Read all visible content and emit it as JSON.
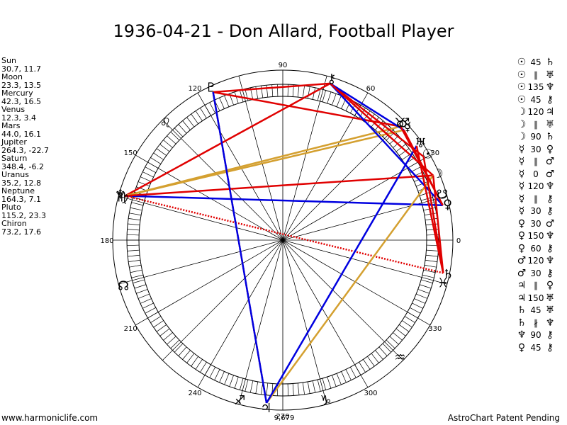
{
  "title": "1936-04-21 - Don Allard, Football Player",
  "positions": [
    {
      "name": "Sun",
      "value": "30.7, 11.7"
    },
    {
      "name": "Moon",
      "value": "23.3, 13.5"
    },
    {
      "name": "Mercury",
      "value": "42.3, 16.5"
    },
    {
      "name": "Venus",
      "value": "12.3, 3.4"
    },
    {
      "name": "Mars",
      "value": "44.0, 16.1"
    },
    {
      "name": "Jupiter",
      "value": "264.3, -22.7"
    },
    {
      "name": "Saturn",
      "value": "348.4, -6.2"
    },
    {
      "name": "Uranus",
      "value": "35.2, 12.8"
    },
    {
      "name": "Neptune",
      "value": "164.3, 7.1"
    },
    {
      "name": "Pluto",
      "value": "115.2, 23.3"
    },
    {
      "name": "Chiron",
      "value": "73.2, 17.6"
    }
  ],
  "aspects": [
    {
      "p1": "☉",
      "aspect": "45",
      "p2": "♄"
    },
    {
      "p1": "☉",
      "aspect": "∥",
      "p2": "♅"
    },
    {
      "p1": "☉",
      "aspect": "135",
      "p2": "♆"
    },
    {
      "p1": "☉",
      "aspect": "45",
      "p2": "⚷"
    },
    {
      "p1": "☽",
      "aspect": "120",
      "p2": "♃"
    },
    {
      "p1": "☽",
      "aspect": "∥",
      "p2": "♅"
    },
    {
      "p1": "☽",
      "aspect": "90",
      "p2": "♄"
    },
    {
      "p1": "☿",
      "aspect": "30",
      "p2": "♀"
    },
    {
      "p1": "☿",
      "aspect": "∥",
      "p2": "♂"
    },
    {
      "p1": "☿",
      "aspect": "0",
      "p2": "♂"
    },
    {
      "p1": "☿",
      "aspect": "120",
      "p2": "♆"
    },
    {
      "p1": "☿",
      "aspect": "∥",
      "p2": "⚷"
    },
    {
      "p1": "☿",
      "aspect": "30",
      "p2": "⚷"
    },
    {
      "p1": "♀",
      "aspect": "30",
      "p2": "♂"
    },
    {
      "p1": "♀",
      "aspect": "150",
      "p2": "♆"
    },
    {
      "p1": "♀",
      "aspect": "60",
      "p2": "⚷"
    },
    {
      "p1": "♂",
      "aspect": "120",
      "p2": "♆"
    },
    {
      "p1": "♂",
      "aspect": "30",
      "p2": "⚷"
    },
    {
      "p1": "♃",
      "aspect": "∥",
      "p2": "♀"
    },
    {
      "p1": "♃",
      "aspect": "150",
      "p2": "♅"
    },
    {
      "p1": "♄",
      "aspect": "45",
      "p2": "♅"
    },
    {
      "p1": "♄",
      "aspect": "∦",
      "p2": "♆"
    },
    {
      "p1": "♆",
      "aspect": "90",
      "p2": "⚷"
    },
    {
      "p1": "♀",
      "aspect": "45",
      "p2": "⚷"
    }
  ],
  "wheel": {
    "degree_labels": [
      "0",
      "30",
      "60",
      "90",
      "120",
      "150",
      "180",
      "210",
      "240",
      "270",
      "300",
      "330"
    ],
    "planets": [
      {
        "symbol": "☉",
        "name": "Sun",
        "longitude": 30.7
      },
      {
        "symbol": "☽",
        "name": "Moon",
        "longitude": 23.3
      },
      {
        "symbol": "☿",
        "name": "Mercury",
        "longitude": 42.3
      },
      {
        "symbol": "♀",
        "name": "Venus",
        "longitude": 12.3
      },
      {
        "symbol": "♂",
        "name": "Mars",
        "longitude": 44.0
      },
      {
        "symbol": "♃",
        "name": "Jupiter",
        "longitude": 264.3
      },
      {
        "symbol": "♄",
        "name": "Saturn",
        "longitude": 348.4
      },
      {
        "symbol": "♅",
        "name": "Uranus",
        "longitude": 35.2
      },
      {
        "symbol": "♆",
        "name": "Neptune",
        "longitude": 164.3
      },
      {
        "symbol": "♇",
        "name": "Pluto",
        "longitude": 115.2
      },
      {
        "symbol": "⚷",
        "name": "Chiron",
        "longitude": 73.2
      }
    ],
    "signs": [
      {
        "symbol": "♉",
        "longitude": 45
      },
      {
        "symbol": "♌",
        "longitude": 135
      },
      {
        "symbol": "♍",
        "longitude": 165
      },
      {
        "symbol": "♐",
        "longitude": 255
      },
      {
        "symbol": "♑",
        "longitude": 285
      },
      {
        "symbol": "♒",
        "longitude": 315
      },
      {
        "symbol": "♓",
        "longitude": 345
      }
    ],
    "nodes": [
      {
        "symbol": "☊",
        "longitude": 196
      },
      {
        "symbol": "☋",
        "longitude": 16
      }
    ],
    "extra_label": "9,679",
    "lines": [
      {
        "from": "Pluto",
        "to": "Chiron",
        "color": "#e00000",
        "style": "solid"
      },
      {
        "from": "Pluto",
        "to": "Jupiter",
        "color": "#e00000",
        "style": "dotted"
      },
      {
        "from": "Pluto",
        "to": "Mars",
        "color": "#e00000",
        "style": "solid"
      },
      {
        "from": "Neptune",
        "to": "Chiron",
        "color": "#e00000",
        "style": "solid"
      },
      {
        "from": "Neptune",
        "to": "Mercury",
        "color": "#d4a030",
        "style": "solid"
      },
      {
        "from": "Neptune",
        "to": "Mars",
        "color": "#d4a030",
        "style": "solid"
      },
      {
        "from": "Neptune",
        "to": "Venus",
        "color": "#0000e0",
        "style": "solid"
      },
      {
        "from": "Neptune",
        "to": "Moon",
        "color": "#e00000",
        "style": "solid"
      },
      {
        "from": "Neptune",
        "to": "Saturn",
        "color": "#e00000",
        "style": "dotted"
      },
      {
        "from": "Chiron",
        "to": "Sun",
        "color": "#e00000",
        "style": "solid"
      },
      {
        "from": "Chiron",
        "to": "Mercury",
        "color": "#0000e0",
        "style": "solid"
      },
      {
        "from": "Chiron",
        "to": "Venus",
        "color": "#0000e0",
        "style": "solid"
      },
      {
        "from": "Chiron",
        "to": "Moon",
        "color": "#e00000",
        "style": "solid"
      },
      {
        "from": "Jupiter",
        "to": "Moon",
        "color": "#d4a030",
        "style": "solid"
      },
      {
        "from": "Jupiter",
        "to": "Uranus",
        "color": "#0000e0",
        "style": "solid"
      },
      {
        "from": "Mercury",
        "to": "Venus",
        "color": "#e00000",
        "style": "solid"
      },
      {
        "from": "Mars",
        "to": "Venus",
        "color": "#e00000",
        "style": "solid"
      },
      {
        "from": "Sun",
        "to": "Saturn",
        "color": "#e00000",
        "style": "solid"
      },
      {
        "from": "Moon",
        "to": "Saturn",
        "color": "#e00000",
        "style": "solid"
      },
      {
        "from": "Uranus",
        "to": "Saturn",
        "color": "#e00000",
        "style": "solid"
      },
      {
        "from": "Pluto",
        "to": "Jupiter",
        "color": "#0000e0",
        "style": "solid"
      }
    ]
  },
  "footer": {
    "left": "www.harmoniclife.com",
    "right": "AstroChart Patent Pending"
  }
}
